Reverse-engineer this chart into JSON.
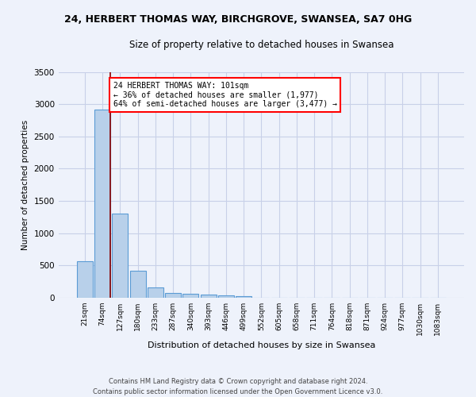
{
  "title1": "24, HERBERT THOMAS WAY, BIRCHGROVE, SWANSEA, SA7 0HG",
  "title2": "Size of property relative to detached houses in Swansea",
  "xlabel": "Distribution of detached houses by size in Swansea",
  "ylabel": "Number of detached properties",
  "bin_labels": [
    "21sqm",
    "74sqm",
    "127sqm",
    "180sqm",
    "233sqm",
    "287sqm",
    "340sqm",
    "393sqm",
    "446sqm",
    "499sqm",
    "552sqm",
    "605sqm",
    "658sqm",
    "711sqm",
    "764sqm",
    "818sqm",
    "871sqm",
    "924sqm",
    "977sqm",
    "1030sqm",
    "1083sqm"
  ],
  "bar_heights": [
    560,
    2920,
    1300,
    420,
    155,
    75,
    55,
    45,
    30,
    20,
    0,
    0,
    0,
    0,
    0,
    0,
    0,
    0,
    0,
    0,
    0
  ],
  "bar_color": "#b8d0ea",
  "bar_edge_color": "#5b9bd5",
  "annotation_text": "24 HERBERT THOMAS WAY: 101sqm\n← 36% of detached houses are smaller (1,977)\n64% of semi-detached houses are larger (3,477) →",
  "annotation_box_color": "white",
  "annotation_box_edge": "red",
  "footer": "Contains HM Land Registry data © Crown copyright and database right 2024.\nContains public sector information licensed under the Open Government Licence v3.0.",
  "bg_color": "#eef2fb",
  "grid_color": "#c8d0e8",
  "ylim": [
    0,
    3500
  ],
  "yticks": [
    0,
    500,
    1000,
    1500,
    2000,
    2500,
    3000,
    3500
  ]
}
